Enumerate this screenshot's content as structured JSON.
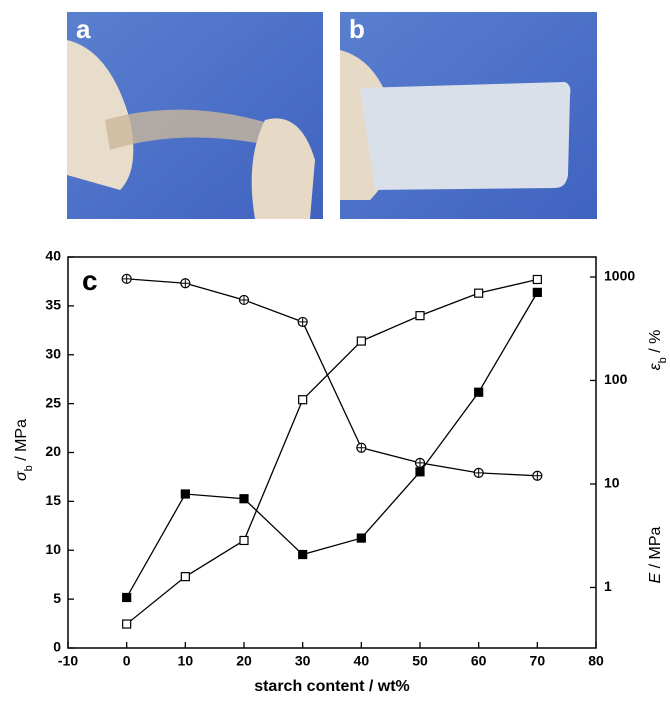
{
  "panels": [
    {
      "label": "a"
    },
    {
      "label": "b"
    }
  ],
  "chart_data": {
    "type": "line",
    "panel_label": "c",
    "x_label": "starch content / wt%",
    "y_label": [
      "σ",
      "b",
      " / MPa"
    ],
    "y2_labels": [
      [
        "ε",
        "b",
        " / %"
      ],
      [
        "E",
        " / MPa"
      ]
    ],
    "x": [
      0,
      10,
      20,
      30,
      40,
      50,
      60,
      70
    ],
    "xlim": [
      -10,
      80
    ],
    "xticks": [
      -10,
      0,
      10,
      20,
      30,
      40,
      50,
      60,
      70,
      80
    ],
    "ylim": [
      0,
      40
    ],
    "yticks": [
      0,
      5,
      10,
      15,
      20,
      25,
      30,
      35,
      40
    ],
    "y2lim": [
      0.26,
      1560
    ],
    "y2ticks": [
      1,
      10,
      100,
      1000
    ],
    "y2log": true,
    "series": [
      {
        "color": "#000000",
        "marker": "circle-cross",
        "axis": "y2",
        "values": [
          960,
          870,
          600,
          368,
          22.4,
          16,
          12.8,
          12
        ]
      },
      {
        "color": "#000000",
        "marker": "square-open",
        "values": [
          2.45,
          7.3,
          11.0,
          25.4,
          31.4,
          34.0,
          36.3,
          37.7
        ]
      },
      {
        "color": "#000000",
        "marker": "square-filled",
        "axis": "y2",
        "values": [
          0.8,
          8.0,
          7.2,
          2.08,
          3.0,
          13.1,
          77,
          710
        ]
      }
    ]
  }
}
